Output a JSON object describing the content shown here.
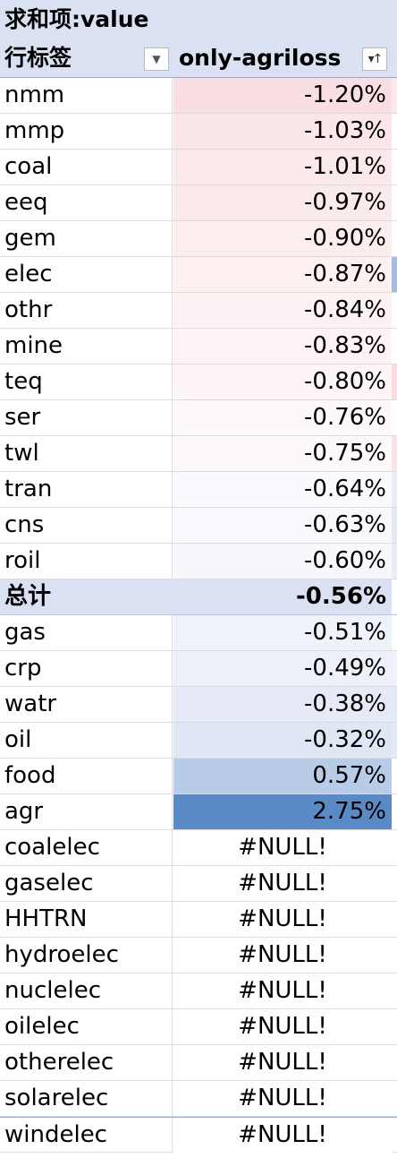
{
  "pivot": {
    "title": "求和项:value",
    "row_label_header": "行标签",
    "column_header": "only-agriloss",
    "filter_icon": "dropdown-arrow-icon",
    "sort_icon": "sort-desc-icon",
    "null_fill": "#ffffff",
    "rows": [
      {
        "label": "nmm",
        "value": "-1.20%",
        "fill": "#fadfe2",
        "kind": "data"
      },
      {
        "label": "mmp",
        "value": "-1.03%",
        "fill": "#fbe7e9",
        "kind": "data"
      },
      {
        "label": "coal",
        "value": "-1.01%",
        "fill": "#fbe8ea",
        "kind": "data"
      },
      {
        "label": "eeq",
        "value": "-0.97%",
        "fill": "#fbeaec",
        "kind": "data"
      },
      {
        "label": "gem",
        "value": "-0.90%",
        "fill": "#fcedef",
        "kind": "data"
      },
      {
        "label": "elec",
        "value": "-0.87%",
        "fill": "#fcf0f1",
        "kind": "data"
      },
      {
        "label": "othr",
        "value": "-0.84%",
        "fill": "#fdf2f3",
        "kind": "data"
      },
      {
        "label": "mine",
        "value": "-0.83%",
        "fill": "#fdf3f4",
        "kind": "data"
      },
      {
        "label": "teq",
        "value": "-0.80%",
        "fill": "#fdf5f6",
        "kind": "data"
      },
      {
        "label": "ser",
        "value": "-0.76%",
        "fill": "#fef8f9",
        "kind": "data"
      },
      {
        "label": "twl",
        "value": "-0.75%",
        "fill": "#fef9f9",
        "kind": "data"
      },
      {
        "label": "tran",
        "value": "-0.64%",
        "fill": "#f9fafd",
        "kind": "data"
      },
      {
        "label": "cns",
        "value": "-0.63%",
        "fill": "#f8f9fd",
        "kind": "data"
      },
      {
        "label": "roil",
        "value": "-0.60%",
        "fill": "#f6f8fc",
        "kind": "data"
      },
      {
        "label": "总计",
        "value": "-0.56%",
        "fill": "#d9e1f2",
        "kind": "total"
      },
      {
        "label": "gas",
        "value": "-0.51%",
        "fill": "#eef2f9",
        "kind": "data"
      },
      {
        "label": "crp",
        "value": "-0.49%",
        "fill": "#ecf0f8",
        "kind": "data"
      },
      {
        "label": "watr",
        "value": "-0.38%",
        "fill": "#e5eaf6",
        "kind": "data"
      },
      {
        "label": "oil",
        "value": "-0.32%",
        "fill": "#e0e7f4",
        "kind": "data"
      },
      {
        "label": "food",
        "value": "0.57%",
        "fill": "#b8cbe7",
        "kind": "data"
      },
      {
        "label": "agr",
        "value": "2.75%",
        "fill": "#5a8ac6",
        "kind": "data"
      },
      {
        "label": "coalelec",
        "value": "#NULL!",
        "fill": "#ffffff",
        "kind": "null"
      },
      {
        "label": "gaselec",
        "value": "#NULL!",
        "fill": "#ffffff",
        "kind": "null"
      },
      {
        "label": "HHTRN",
        "value": "#NULL!",
        "fill": "#ffffff",
        "kind": "null"
      },
      {
        "label": "hydroelec",
        "value": "#NULL!",
        "fill": "#ffffff",
        "kind": "null"
      },
      {
        "label": "nuclelec",
        "value": "#NULL!",
        "fill": "#ffffff",
        "kind": "null"
      },
      {
        "label": "oilelec",
        "value": "#NULL!",
        "fill": "#ffffff",
        "kind": "null"
      },
      {
        "label": "otherelec",
        "value": "#NULL!",
        "fill": "#ffffff",
        "kind": "null"
      },
      {
        "label": "solarelec",
        "value": "#NULL!",
        "fill": "#ffffff",
        "kind": "null"
      },
      {
        "label": "windelec",
        "value": "#NULL!",
        "fill": "#ffffff",
        "kind": "null"
      }
    ],
    "edge_fills": [
      "#fce8ea",
      "#ffffff",
      "#ffffff",
      "#ffffff",
      "#ffffff",
      "#a7bce0",
      "#ffffff",
      "#ffffff",
      "#f8dcdf",
      "#ffffff",
      "#fbe4e7",
      "#e8edf7",
      "#e3e9f5",
      "#e8edf7",
      "#ffffff",
      "#ffffff",
      "#eef2f9",
      "#e3e9f5",
      "#e3e9f5",
      "#ffffff",
      "#ffffff"
    ]
  }
}
